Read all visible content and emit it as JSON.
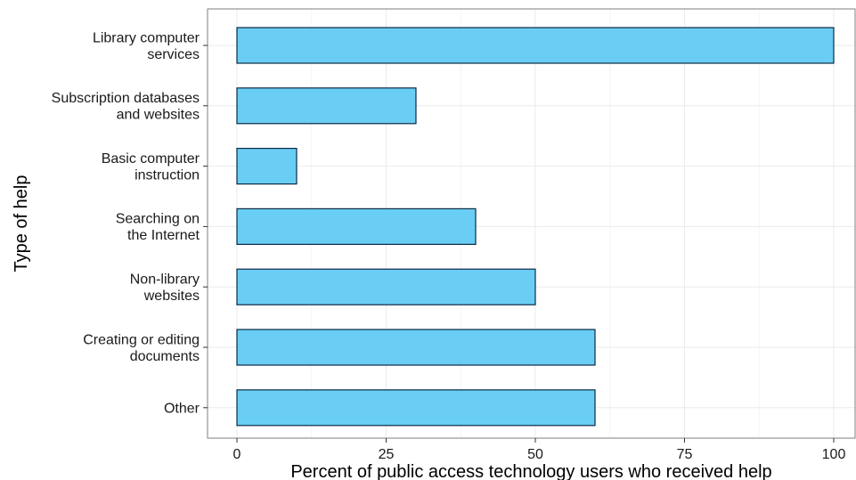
{
  "chart_data": {
    "type": "bar",
    "orientation": "horizontal",
    "categories": [
      [
        "Library computer",
        "services"
      ],
      [
        "Subscription databases",
        "and websites"
      ],
      [
        "Basic computer",
        "instruction"
      ],
      [
        "Searching on",
        "the Internet"
      ],
      [
        "Non-library",
        "websites"
      ],
      [
        "Creating or editing",
        "documents"
      ],
      [
        "Other"
      ]
    ],
    "values": [
      100,
      30,
      10,
      40,
      50,
      60,
      60
    ],
    "xlabel": "Percent of public access technology users who received help",
    "ylabel": "Type of help",
    "xlim": [
      0,
      100
    ],
    "xticks": [
      "0",
      "25",
      "50",
      "75",
      "100"
    ],
    "grid": true,
    "colors": {
      "bar_fill": "#6ACEF4",
      "bar_stroke": "#0B2A45",
      "grid_major": "#EBEBEB",
      "grid_minor": "#F5F5F5",
      "panel_border": "#7F7F7F"
    }
  }
}
